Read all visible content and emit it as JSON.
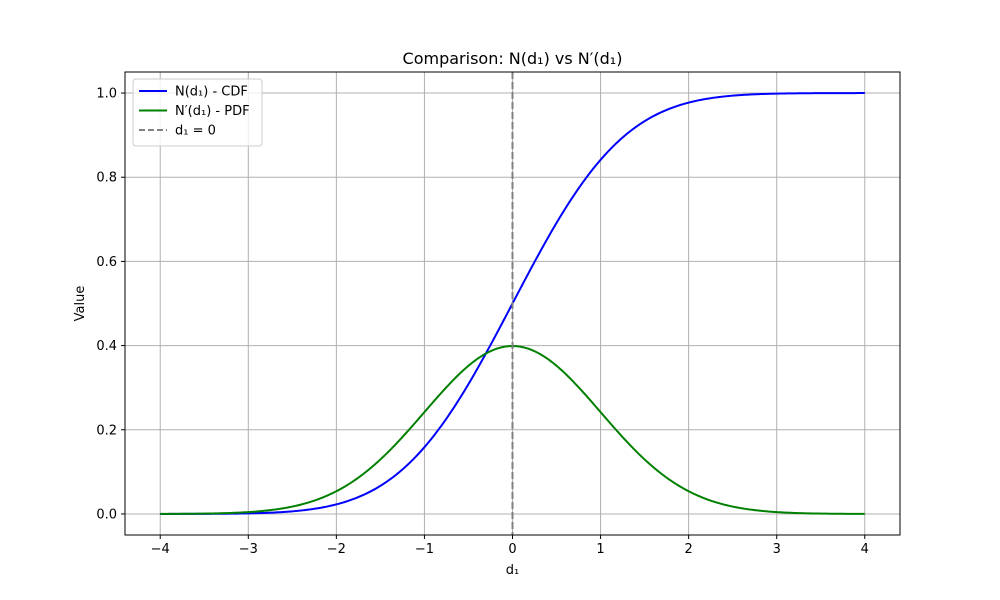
{
  "chart_data": {
    "type": "line",
    "title": "Comparison: N(d₁) vs N′(d₁)",
    "xlabel": "d₁",
    "ylabel": "Value",
    "xlim": [
      -4.4,
      4.4
    ],
    "ylim": [
      -0.05,
      1.05
    ],
    "xticks": [
      -4,
      -3,
      -2,
      -1,
      0,
      1,
      2,
      3,
      4
    ],
    "xtick_labels": [
      "−4",
      "−3",
      "−2",
      "−1",
      "0",
      "1",
      "2",
      "3",
      "4"
    ],
    "yticks": [
      0.0,
      0.2,
      0.4,
      0.6,
      0.8,
      1.0
    ],
    "ytick_labels": [
      "0.0",
      "0.2",
      "0.4",
      "0.6",
      "0.8",
      "1.0"
    ],
    "grid": true,
    "legend_position": "top-left",
    "x": [
      -4,
      -3.5,
      -3,
      -2.5,
      -2,
      -1.5,
      -1,
      -0.5,
      0,
      0.5,
      1,
      1.5,
      2,
      2.5,
      3,
      3.5,
      4
    ],
    "series": [
      {
        "name": "N(d₁) - CDF",
        "color": "#0000ff",
        "style": "solid",
        "values": [
          0.0,
          0.0002,
          0.0013,
          0.0062,
          0.0228,
          0.0668,
          0.1587,
          0.3085,
          0.5,
          0.6915,
          0.8413,
          0.9332,
          0.9772,
          0.9938,
          0.9987,
          0.9998,
          1.0
        ]
      },
      {
        "name": "N′(d₁) - PDF",
        "color": "#008000",
        "style": "solid",
        "values": [
          0.0001,
          0.0009,
          0.0044,
          0.0175,
          0.054,
          0.1295,
          0.242,
          0.3521,
          0.3989,
          0.3521,
          0.242,
          0.1295,
          0.054,
          0.0175,
          0.0044,
          0.0009,
          0.0001
        ]
      }
    ],
    "vline": {
      "name": "d₁ = 0",
      "x": 0,
      "color": "#808080",
      "style": "dashed"
    }
  }
}
